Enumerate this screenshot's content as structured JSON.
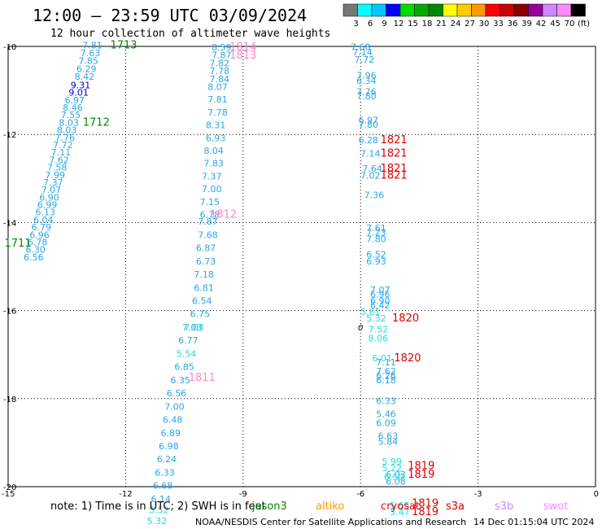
{
  "header": {
    "title": "12:00 — 23:59 UTC 03/09/2024",
    "subtitle": "12 hour collection of altimeter wave heights"
  },
  "colorbar": {
    "colors": [
      "#777777",
      "#00ffff",
      "#00c8ff",
      "#0000ff",
      "#00dd00",
      "#00aa00",
      "#008800",
      "#ffff00",
      "#ffcc00",
      "#ff9900",
      "#ff0000",
      "#cc0000",
      "#880000",
      "#990099",
      "#cc88ff",
      "#ff88ff",
      "#000000"
    ],
    "labels": [
      "3",
      "6",
      "9",
      "12",
      "15",
      "18",
      "21",
      "24",
      "27",
      "30",
      "33",
      "36",
      "39",
      "42",
      "45",
      "70",
      "(ft)"
    ]
  },
  "footer": {
    "note": "note: 1) Time is in UTC; 2) SWH is in feet",
    "satellites": [
      {
        "name": "jason3",
        "color": "#008800"
      },
      {
        "name": "altiko",
        "color": "#ff9900"
      },
      {
        "name": "cryosat",
        "color": "#ff0000"
      },
      {
        "name": "s3a",
        "color": "#cc0000"
      },
      {
        "name": "s3b",
        "color": "#cc88ff"
      },
      {
        "name": "swot",
        "color": "#ff88ff"
      }
    ],
    "credit": "NOAA/NESDIS Center for Satellite Applications and Research",
    "timestamp": "14 Dec 01:15:04 UTC 2024"
  },
  "chart_data": {
    "type": "scatter",
    "xlim": [
      -15,
      0
    ],
    "ylim": [
      -20,
      -10
    ],
    "xticks": [
      "-15",
      "-12",
      "-9",
      "-6",
      "-3",
      "0"
    ],
    "yticks": [
      "-10",
      "-12",
      "-14",
      "-16",
      "-18",
      "-20"
    ],
    "grid": true,
    "series": [
      {
        "color": "#2aa6e6",
        "points": [
          [
            -12.85,
            -10.05,
            "7.81"
          ],
          [
            -12.9,
            -10.22,
            "7.63"
          ],
          [
            -12.95,
            -10.4,
            "7.85"
          ],
          [
            -13.0,
            -10.58,
            "6.29"
          ],
          [
            -13.05,
            -10.76,
            "8.42"
          ],
          [
            -13.3,
            -11.29,
            "6.97"
          ],
          [
            -13.35,
            -11.46,
            "8.46"
          ],
          [
            -13.4,
            -11.63,
            "7.55"
          ],
          [
            -13.45,
            -11.8,
            "8.03"
          ],
          [
            -13.5,
            -11.97,
            "8.03"
          ],
          [
            -13.55,
            -12.14,
            "7.76"
          ],
          [
            -13.6,
            -12.31,
            "7.72"
          ],
          [
            -13.65,
            -12.48,
            "7.11"
          ],
          [
            -13.7,
            -12.65,
            "7.62"
          ],
          [
            -13.75,
            -12.82,
            "7.58"
          ],
          [
            -13.8,
            -12.99,
            "7.99"
          ],
          [
            -13.85,
            -13.16,
            "7.37"
          ],
          [
            -13.9,
            -13.33,
            "7.07"
          ],
          [
            -13.95,
            -13.5,
            "6.90"
          ],
          [
            -14.0,
            -13.67,
            "6.99"
          ],
          [
            -14.05,
            -13.84,
            "6.13"
          ],
          [
            -14.1,
            -14.01,
            "6.04"
          ],
          [
            -14.15,
            -14.18,
            "6.79"
          ],
          [
            -14.2,
            -14.35,
            "6.96"
          ],
          [
            -14.25,
            -14.52,
            "6.78"
          ],
          [
            -14.3,
            -14.69,
            "6.30"
          ],
          [
            -14.35,
            -14.86,
            "6.56"
          ],
          [
            -9.55,
            -10.09,
            "8.59"
          ],
          [
            -9.55,
            -10.27,
            "7.87"
          ],
          [
            -9.6,
            -10.45,
            "7.82"
          ],
          [
            -9.6,
            -10.63,
            "7.78"
          ],
          [
            -9.6,
            -10.81,
            "7.84"
          ],
          [
            -9.65,
            -10.99,
            "8.07"
          ],
          [
            -9.65,
            -11.28,
            "7.81"
          ],
          [
            -9.65,
            -11.57,
            "7.78"
          ],
          [
            -9.7,
            -11.86,
            "8.31"
          ],
          [
            -9.7,
            -12.15,
            "6.93"
          ],
          [
            -9.75,
            -12.44,
            "8.04"
          ],
          [
            -9.75,
            -12.73,
            "7.83"
          ],
          [
            -9.8,
            -13.02,
            "7.37"
          ],
          [
            -9.8,
            -13.31,
            "7.00"
          ],
          [
            -9.85,
            -13.6,
            "7.15"
          ],
          [
            -9.85,
            -13.89,
            "6.78"
          ],
          [
            -9.9,
            -14.05,
            "7.87"
          ],
          [
            -9.9,
            -14.35,
            "7.68"
          ],
          [
            -9.95,
            -14.65,
            "6.87"
          ],
          [
            -9.95,
            -14.95,
            "6.73"
          ],
          [
            -10.0,
            -15.25,
            "7.18"
          ],
          [
            -10.0,
            -15.55,
            "6.81"
          ],
          [
            -10.05,
            -15.85,
            "6.54"
          ],
          [
            -10.1,
            -16.15,
            "6.75"
          ],
          [
            -10.3,
            -16.45,
            "7.03"
          ],
          [
            -10.4,
            -16.75,
            "6.77"
          ],
          [
            -10.5,
            -17.35,
            "6.85"
          ],
          [
            -10.6,
            -17.65,
            "6.35"
          ],
          [
            -10.7,
            -17.95,
            "6.56"
          ],
          [
            -10.75,
            -18.25,
            "7.00"
          ],
          [
            -10.8,
            -18.55,
            "6.48"
          ],
          [
            -10.85,
            -18.85,
            "6.89"
          ],
          [
            -10.9,
            -19.15,
            "6.98"
          ],
          [
            -10.95,
            -19.45,
            "6.24"
          ],
          [
            -11.0,
            -19.75,
            "6.33"
          ],
          [
            -11.05,
            -20.05,
            "6.68"
          ],
          [
            -11.1,
            -20.35,
            "6.14"
          ],
          [
            -6.0,
            -10.08,
            "7.68"
          ],
          [
            -5.95,
            -10.2,
            "7.14"
          ],
          [
            -5.9,
            -10.37,
            "7.72"
          ],
          [
            -5.85,
            -10.73,
            "7.96"
          ],
          [
            -5.85,
            -10.85,
            "6.34"
          ],
          [
            -5.85,
            -11.1,
            "7.76"
          ],
          [
            -5.85,
            -11.2,
            "7.80"
          ],
          [
            -5.8,
            -11.75,
            "6.97"
          ],
          [
            -5.8,
            -11.85,
            "7.80"
          ],
          [
            -5.8,
            -12.2,
            "6.28"
          ],
          [
            -5.75,
            -12.5,
            "7.14"
          ],
          [
            -5.7,
            -12.85,
            "7.64"
          ],
          [
            -5.75,
            -13.0,
            "7.02"
          ],
          [
            -5.65,
            -13.45,
            "7.36"
          ],
          [
            -5.6,
            -14.2,
            "7.61"
          ],
          [
            -5.6,
            -14.3,
            "7.23"
          ],
          [
            -5.6,
            -14.45,
            "7.80"
          ],
          [
            -5.6,
            -14.8,
            "6.52"
          ],
          [
            -5.6,
            -14.95,
            "6.93"
          ],
          [
            -5.5,
            -15.6,
            "7.07"
          ],
          [
            -5.5,
            -15.7,
            "6.96"
          ],
          [
            -5.5,
            -15.85,
            "6.90"
          ],
          [
            -5.5,
            -15.95,
            "6.42"
          ],
          [
            -5.35,
            -17.25,
            "7.11"
          ],
          [
            -5.35,
            -17.45,
            "7.62"
          ],
          [
            -5.35,
            -17.55,
            "6.26"
          ],
          [
            -5.35,
            -17.65,
            "6.18"
          ],
          [
            -5.35,
            -18.12,
            "6.33"
          ],
          [
            -5.35,
            -18.42,
            "5.46"
          ],
          [
            -5.35,
            -18.62,
            "6.09"
          ],
          [
            -5.3,
            -18.92,
            "6.63"
          ],
          [
            -5.3,
            -19.05,
            "5.84"
          ],
          [
            -5.1,
            -19.8,
            "6.03"
          ],
          [
            -5.1,
            -19.95,
            "6.08"
          ]
        ]
      },
      {
        "color": "#0000cc",
        "points": [
          [
            -13.15,
            -10.95,
            "9.31"
          ],
          [
            -13.2,
            -11.12,
            "9.01"
          ]
        ]
      },
      {
        "color": "#22dddd",
        "points": [
          [
            -10.25,
            -16.45,
            "7.03"
          ],
          [
            -10.45,
            -17.05,
            "5.54"
          ],
          [
            -11.15,
            -20.6,
            "5.52"
          ],
          [
            -11.2,
            -20.85,
            "5.32"
          ],
          [
            -5.75,
            -16.1,
            "5.61"
          ],
          [
            -5.6,
            -16.25,
            "5.32"
          ],
          [
            -5.55,
            -16.5,
            "7.52"
          ],
          [
            -5.55,
            -16.7,
            "8.06"
          ],
          [
            -5.45,
            -17.15,
            "6.01"
          ],
          [
            -5.2,
            -19.5,
            "5.99"
          ],
          [
            -5.2,
            -19.65,
            "5.22"
          ],
          [
            -5.15,
            -19.85,
            "6.50"
          ],
          [
            -5.0,
            -20.5,
            "5.65"
          ],
          [
            -5.0,
            -20.65,
            "5.47"
          ]
        ]
      }
    ],
    "annotations": [
      {
        "x": -12.05,
        "y": -10.05,
        "text": "1713",
        "color": "#008800"
      },
      {
        "x": -12.75,
        "y": -11.8,
        "text": "1712",
        "color": "#008800"
      },
      {
        "x": -14.75,
        "y": -14.55,
        "text": "1711",
        "color": "#008800"
      },
      {
        "x": -9.0,
        "y": -10.09,
        "text": "1814",
        "color": "#ff88cc"
      },
      {
        "x": -9.0,
        "y": -10.28,
        "text": "1813",
        "color": "#ff88cc"
      },
      {
        "x": -9.5,
        "y": -13.89,
        "text": "1812",
        "color": "#ff88cc"
      },
      {
        "x": -10.05,
        "y": -17.6,
        "text": "1811",
        "color": "#ff88cc"
      },
      {
        "x": -5.15,
        "y": -12.2,
        "text": "1821",
        "color": "#dd0000"
      },
      {
        "x": -5.15,
        "y": -12.5,
        "text": "1821",
        "color": "#dd0000"
      },
      {
        "x": -5.15,
        "y": -12.85,
        "text": "1821",
        "color": "#dd0000"
      },
      {
        "x": -5.15,
        "y": -13.0,
        "text": "1821",
        "color": "#dd0000"
      },
      {
        "x": -4.85,
        "y": -16.25,
        "text": "1820",
        "color": "#dd0000"
      },
      {
        "x": -4.8,
        "y": -17.15,
        "text": "1820",
        "color": "#dd0000"
      },
      {
        "x": -4.45,
        "y": -19.6,
        "text": "1819",
        "color": "#dd0000"
      },
      {
        "x": -4.45,
        "y": -19.8,
        "text": "1819",
        "color": "#dd0000"
      },
      {
        "x": -4.35,
        "y": -20.45,
        "text": "1819",
        "color": "#dd0000"
      },
      {
        "x": -4.35,
        "y": -20.65,
        "text": "1819",
        "color": "#dd0000"
      }
    ],
    "contour_label": {
      "x": -6.0,
      "y": -16.45,
      "text": "0"
    }
  }
}
